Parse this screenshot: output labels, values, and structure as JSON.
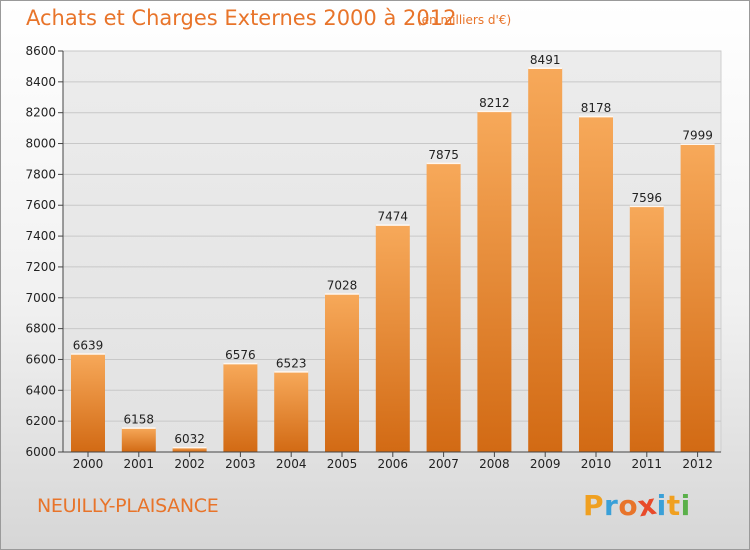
{
  "header": {
    "title": "Achats et Charges Externes 2000 à 2012",
    "subtitle": "(en milliers d'€)"
  },
  "footer": {
    "commune": "NEUILLY-PLAISANCE",
    "logo_letters": [
      "P",
      "r",
      "o",
      "x",
      "i",
      "t",
      "i"
    ],
    "logo_colors": [
      "#f0a020",
      "#3aa0d8",
      "#e8742a",
      "#e84a2a",
      "#3aa0d8",
      "#f0a020",
      "#5ab04a"
    ]
  },
  "colors": {
    "accent": "#e8742a",
    "bar_top": "#f7a95a",
    "bar_bottom": "#d26a14"
  },
  "chart_data": {
    "type": "bar",
    "title": "Achats et Charges Externes 2000 à 2012",
    "subtitle": "(en milliers d'€)",
    "categories": [
      "2000",
      "2001",
      "2002",
      "2003",
      "2004",
      "2005",
      "2006",
      "2007",
      "2008",
      "2009",
      "2010",
      "2011",
      "2012"
    ],
    "values": [
      6639,
      6158,
      6032,
      6576,
      6523,
      7028,
      7474,
      7875,
      8212,
      8491,
      8178,
      7596,
      7999
    ],
    "data_labels": [
      "6639",
      "6158",
      "6032",
      "6576",
      "6523",
      "7028",
      "7474",
      "7875",
      "8212",
      "8491",
      "8178",
      "7596",
      "7999"
    ],
    "ylim": [
      6000,
      8600
    ],
    "yticks": [
      "6000",
      "6200",
      "6400",
      "6600",
      "6800",
      "7000",
      "7200",
      "7400",
      "7600",
      "7800",
      "8000",
      "8200",
      "8400",
      "8600"
    ],
    "grid": true,
    "legend": "none"
  }
}
